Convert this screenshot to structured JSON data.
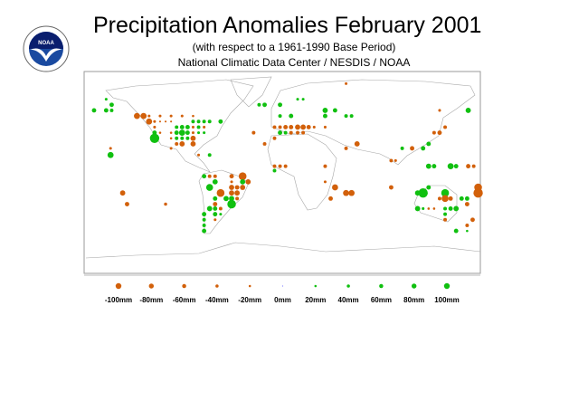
{
  "header": {
    "title": "Precipitation Anomalies February 2001",
    "subtitle": "(with respect to a 1961-1990 Base Period)",
    "source": "National Climatic Data Center / NESDIS / NOAA",
    "logo_text": "NOAA"
  },
  "colors": {
    "deficit": "#d2600a",
    "surplus": "#10c010",
    "zero": "#8080ff",
    "coast": "#a8a8a8"
  },
  "legend": [
    {
      "label": "-100mm",
      "value": -100
    },
    {
      "label": "-80mm",
      "value": -80
    },
    {
      "label": "-60mm",
      "value": -60
    },
    {
      "label": "-40mm",
      "value": -40
    },
    {
      "label": "-20mm",
      "value": -20
    },
    {
      "label": "0mm",
      "value": 0
    },
    {
      "label": "20mm",
      "value": 20
    },
    {
      "label": "40mm",
      "value": 40
    },
    {
      "label": "60mm",
      "value": 60
    },
    {
      "label": "80mm",
      "value": 80
    },
    {
      "label": "100mm",
      "value": 100
    }
  ],
  "stations": [
    [
      -171,
      56,
      40
    ],
    [
      -160,
      66,
      20
    ],
    [
      -155,
      61,
      40
    ],
    [
      -160,
      56,
      40
    ],
    [
      -155,
      56,
      30
    ],
    [
      -132,
      51,
      -60
    ],
    [
      -126,
      51,
      -60
    ],
    [
      -121,
      46,
      -60
    ],
    [
      -121,
      51,
      -20
    ],
    [
      -116,
      36,
      40
    ],
    [
      -116,
      31,
      100
    ],
    [
      -111,
      51,
      -20
    ],
    [
      -101,
      51,
      -20
    ],
    [
      -91,
      51,
      -20
    ],
    [
      -81,
      51,
      -15
    ],
    [
      -116,
      46,
      -20
    ],
    [
      -111,
      46,
      -10
    ],
    [
      -106,
      46,
      -10
    ],
    [
      -101,
      46,
      -10
    ],
    [
      -81,
      46,
      30
    ],
    [
      -76,
      46,
      30
    ],
    [
      -71,
      46,
      30
    ],
    [
      -66,
      46,
      30
    ],
    [
      -56,
      46,
      40
    ],
    [
      -116,
      41,
      -20
    ],
    [
      -96,
      41,
      30
    ],
    [
      -91,
      41,
      40
    ],
    [
      -86,
      41,
      40
    ],
    [
      -81,
      41,
      -20
    ],
    [
      -76,
      41,
      30
    ],
    [
      -71,
      41,
      -20
    ],
    [
      -111,
      36,
      -15
    ],
    [
      -101,
      36,
      -15
    ],
    [
      -96,
      36,
      40
    ],
    [
      -91,
      36,
      60
    ],
    [
      -86,
      36,
      40
    ],
    [
      -81,
      36,
      -20
    ],
    [
      -76,
      36,
      20
    ],
    [
      -71,
      36,
      20
    ],
    [
      -101,
      31,
      -15
    ],
    [
      -96,
      31,
      30
    ],
    [
      -91,
      31,
      30
    ],
    [
      -86,
      31,
      30
    ],
    [
      -81,
      31,
      -50
    ],
    [
      -96,
      26,
      -30
    ],
    [
      -91,
      26,
      -50
    ],
    [
      -81,
      26,
      -50
    ],
    [
      -101,
      22,
      -20
    ],
    [
      -156,
      22,
      -20
    ],
    [
      -156,
      16,
      60
    ],
    [
      -66,
      16,
      30
    ],
    [
      -76,
      16,
      -20
    ],
    [
      -26,
      36,
      -30
    ],
    [
      -16,
      26,
      -30
    ],
    [
      -21,
      61,
      30
    ],
    [
      -16,
      61,
      40
    ],
    [
      58,
      80,
      -20
    ],
    [
      -2,
      61,
      40
    ],
    [
      8,
      51,
      40
    ],
    [
      -2,
      51,
      30
    ],
    [
      39,
      56,
      50
    ],
    [
      48,
      56,
      40
    ],
    [
      39,
      51,
      40
    ],
    [
      58,
      51,
      30
    ],
    [
      63,
      51,
      30
    ],
    [
      -7,
      41,
      -30
    ],
    [
      -2,
      41,
      -30
    ],
    [
      3,
      41,
      -40
    ],
    [
      8,
      41,
      -40
    ],
    [
      14,
      41,
      -50
    ],
    [
      19,
      41,
      -50
    ],
    [
      24,
      41,
      -40
    ],
    [
      29,
      41,
      -20
    ],
    [
      39,
      41,
      -20
    ],
    [
      -2,
      36,
      40
    ],
    [
      3,
      36,
      30
    ],
    [
      8,
      36,
      -30
    ],
    [
      14,
      36,
      -30
    ],
    [
      19,
      36,
      -30
    ],
    [
      -7,
      31,
      -30
    ],
    [
      68,
      26,
      -50
    ],
    [
      58,
      22,
      -30
    ],
    [
      169,
      56,
      50
    ],
    [
      143,
      56,
      -20
    ],
    [
      148,
      41,
      -30
    ],
    [
      143,
      36,
      -40
    ],
    [
      138,
      36,
      -30
    ],
    [
      133,
      26,
      40
    ],
    [
      128,
      22,
      40
    ],
    [
      118,
      22,
      -40
    ],
    [
      109,
      22,
      30
    ],
    [
      99,
      11,
      -30
    ],
    [
      103,
      11,
      -20
    ],
    [
      39,
      6,
      -30
    ],
    [
      133,
      6,
      50
    ],
    [
      138,
      6,
      40
    ],
    [
      153,
      6,
      60
    ],
    [
      158,
      6,
      40
    ],
    [
      169,
      6,
      -40
    ],
    [
      174,
      6,
      -30
    ],
    [
      -7,
      6,
      -30
    ],
    [
      -2,
      6,
      -30
    ],
    [
      3,
      6,
      -30
    ],
    [
      14,
      66,
      20
    ],
    [
      19,
      66,
      20
    ],
    [
      -7,
      2,
      30
    ],
    [
      -71,
      -3,
      40
    ],
    [
      -66,
      -3,
      -30
    ],
    [
      -61,
      -3,
      -30
    ],
    [
      -46,
      -3,
      -40
    ],
    [
      -36,
      -3,
      -80
    ],
    [
      -61,
      -8,
      50
    ],
    [
      -36,
      -8,
      50
    ],
    [
      -31,
      -8,
      -50
    ],
    [
      -46,
      -8,
      -20
    ],
    [
      -66,
      -13,
      70
    ],
    [
      -46,
      -13,
      -50
    ],
    [
      -41,
      -13,
      -40
    ],
    [
      -36,
      -13,
      -50
    ],
    [
      -56,
      -18,
      -80
    ],
    [
      -46,
      -18,
      -50
    ],
    [
      -41,
      -18,
      -50
    ],
    [
      -61,
      -23,
      40
    ],
    [
      -51,
      -23,
      50
    ],
    [
      -46,
      -23,
      50
    ],
    [
      -41,
      -23,
      -30
    ],
    [
      -46,
      -28,
      90
    ],
    [
      -61,
      -28,
      -40
    ],
    [
      -66,
      -32,
      50
    ],
    [
      -61,
      -32,
      40
    ],
    [
      -56,
      -32,
      -30
    ],
    [
      -71,
      -37,
      40
    ],
    [
      -61,
      -37,
      40
    ],
    [
      -56,
      -37,
      20
    ],
    [
      -71,
      -42,
      30
    ],
    [
      -61,
      -42,
      -20
    ],
    [
      -71,
      -47,
      30
    ],
    [
      -71,
      -52,
      40
    ],
    [
      -145,
      -18,
      -50
    ],
    [
      -141,
      -28,
      -40
    ],
    [
      -106,
      -28,
      -25
    ],
    [
      48,
      -13,
      -60
    ],
    [
      44,
      -23,
      -40
    ],
    [
      58,
      -18,
      -60
    ],
    [
      63,
      -18,
      -60
    ],
    [
      39,
      -8,
      -20
    ],
    [
      99,
      -13,
      -40
    ],
    [
      128,
      -18,
      100
    ],
    [
      123,
      -18,
      50
    ],
    [
      133,
      -13,
      40
    ],
    [
      148,
      -18,
      80
    ],
    [
      148,
      -23,
      -70
    ],
    [
      153,
      -23,
      -40
    ],
    [
      143,
      -23,
      -30
    ],
    [
      163,
      -23,
      40
    ],
    [
      168,
      -23,
      40
    ],
    [
      168,
      -28,
      -40
    ],
    [
      178,
      -18,
      -100
    ],
    [
      178,
      -13,
      -80
    ],
    [
      123,
      -32,
      50
    ],
    [
      128,
      -32,
      20
    ],
    [
      133,
      -32,
      -15
    ],
    [
      138,
      -32,
      -15
    ],
    [
      148,
      -32,
      30
    ],
    [
      153,
      -32,
      40
    ],
    [
      158,
      -32,
      50
    ],
    [
      148,
      -37,
      30
    ],
    [
      148,
      -42,
      -30
    ],
    [
      168,
      -47,
      -30
    ],
    [
      173,
      -42,
      -40
    ],
    [
      158,
      -52,
      40
    ],
    [
      168,
      -52,
      15
    ]
  ]
}
